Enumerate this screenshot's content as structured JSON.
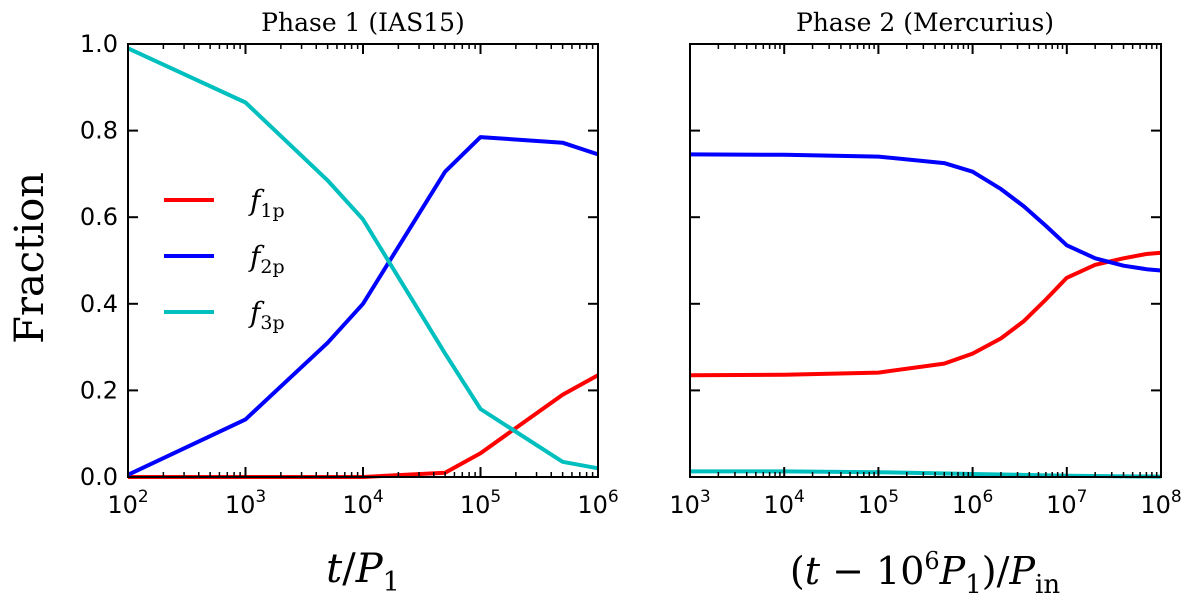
{
  "chart_data": [
    {
      "type": "line",
      "title": "Phase 1 (IAS15)",
      "xlabel": "t/P1",
      "ylabel": "Fraction",
      "xscale": "log",
      "xlim": [
        100,
        1000000
      ],
      "ylim": [
        0,
        1
      ],
      "x_tick_labels": [
        "10^2",
        "10^3",
        "10^4",
        "10^5",
        "10^6"
      ],
      "y_tick_labels": [
        "0.0",
        "0.2",
        "0.4",
        "0.6",
        "0.8",
        "1.0"
      ],
      "grid": false,
      "legend": {
        "position": "center-left",
        "entries": [
          "f_1p",
          "f_2p",
          "f_3p"
        ]
      },
      "series": [
        {
          "name": "f_1p",
          "color": "#ff0000",
          "x": [
            100,
            1000,
            10000,
            50000,
            100000,
            500000,
            1000000
          ],
          "y": [
            0.0,
            0.0,
            0.0,
            0.01,
            0.055,
            0.19,
            0.235
          ]
        },
        {
          "name": "f_2p",
          "color": "#0000ff",
          "x": [
            100,
            1000,
            5000,
            10000,
            50000,
            100000,
            500000,
            1000000
          ],
          "y": [
            0.005,
            0.133,
            0.31,
            0.4,
            0.705,
            0.785,
            0.772,
            0.745
          ]
        },
        {
          "name": "f_3p",
          "color": "#00bfbf",
          "x": [
            100,
            1000,
            5000,
            10000,
            50000,
            100000,
            500000,
            1000000
          ],
          "y": [
            0.99,
            0.865,
            0.685,
            0.595,
            0.285,
            0.157,
            0.035,
            0.02
          ]
        }
      ]
    },
    {
      "type": "line",
      "title": "Phase 2 (Mercurius)",
      "xlabel": "(t−10^6 P1)/Pin",
      "xscale": "log",
      "xlim": [
        1000,
        100000000
      ],
      "ylim": [
        0,
        1
      ],
      "x_tick_labels": [
        "10^3",
        "10^4",
        "10^5",
        "10^6",
        "10^7",
        "10^8"
      ],
      "grid": false,
      "series": [
        {
          "name": "f_1p",
          "color": "#ff0000",
          "x": [
            1000,
            10000,
            100000,
            500000,
            1000000,
            2000000,
            3500000,
            6000000,
            10000000,
            20000000,
            40000000,
            70000000,
            100000000
          ],
          "y": [
            0.235,
            0.236,
            0.241,
            0.262,
            0.285,
            0.32,
            0.36,
            0.41,
            0.46,
            0.49,
            0.505,
            0.515,
            0.518
          ]
        },
        {
          "name": "f_2p",
          "color": "#0000ff",
          "x": [
            1000,
            10000,
            100000,
            500000,
            1000000,
            2000000,
            3500000,
            6000000,
            10000000,
            20000000,
            40000000,
            70000000,
            100000000
          ],
          "y": [
            0.745,
            0.744,
            0.74,
            0.725,
            0.705,
            0.665,
            0.625,
            0.58,
            0.535,
            0.505,
            0.488,
            0.48,
            0.477
          ]
        },
        {
          "name": "f_3p",
          "color": "#00bfbf",
          "x": [
            1000,
            10000,
            100000,
            1000000,
            10000000,
            100000000
          ],
          "y": [
            0.013,
            0.013,
            0.011,
            0.007,
            0.003,
            0.001
          ]
        }
      ]
    }
  ]
}
